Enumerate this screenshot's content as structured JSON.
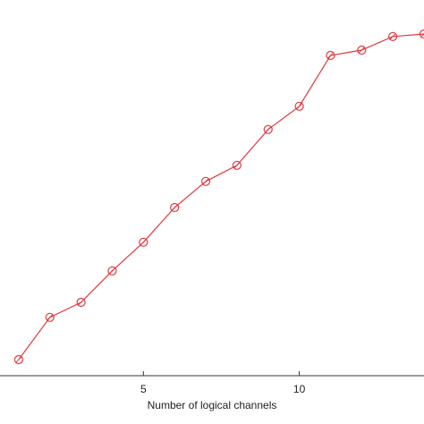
{
  "chart_data": {
    "type": "line",
    "xlabel": "Number of logical channels",
    "x": [
      1,
      2,
      3,
      4,
      5,
      6,
      7,
      8,
      9,
      10,
      11,
      12,
      13,
      14
    ],
    "series": [
      {
        "color": "#e0393e",
        "values": [
          4.5,
          16.3,
          20.5,
          29.3,
          37.3,
          47,
          54.3,
          58.8,
          68.8,
          75.3,
          89.5,
          91,
          94.8,
          95.5
        ]
      }
    ],
    "xlim": [
      0.4,
      14
    ],
    "xticks": [
      5,
      10
    ],
    "ylim": [
      0,
      100
    ]
  }
}
